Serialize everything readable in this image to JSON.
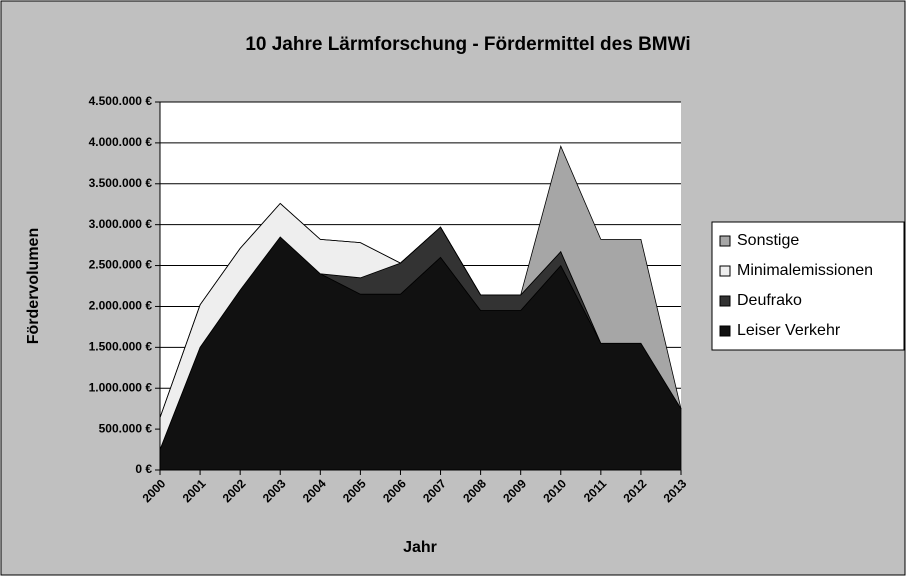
{
  "chart_data": {
    "type": "stacked_area",
    "title": "10 Jahre Lärmforschung - Fördermittel des BMWi",
    "x_label": "Jahr",
    "y_label": "Fördervolumen",
    "categories": [
      "2000",
      "2001",
      "2002",
      "2003",
      "2004",
      "2005",
      "2006",
      "2007",
      "2008",
      "2009",
      "2010",
      "2011",
      "2012",
      "2013"
    ],
    "series": [
      {
        "name": "Leiser Verkehr",
        "color": "#111111",
        "values": [
          250000,
          1500000,
          2200000,
          2850000,
          2400000,
          2150000,
          2150000,
          2600000,
          1950000,
          1950000,
          2500000,
          1550000,
          1550000,
          750000
        ]
      },
      {
        "name": "Deufrako",
        "color": "#333333",
        "values": [
          0,
          0,
          0,
          0,
          0,
          200000,
          380000,
          370000,
          190000,
          190000,
          170000,
          0,
          0,
          0
        ]
      },
      {
        "name": "Minimalemissionen",
        "color": "#eeeeee",
        "values": [
          390000,
          520000,
          510000,
          410000,
          420000,
          430000,
          0,
          0,
          0,
          0,
          0,
          0,
          0,
          0
        ]
      },
      {
        "name": "Sonstige",
        "color": "#a6a6a6",
        "values": [
          0,
          0,
          0,
          0,
          0,
          0,
          0,
          0,
          0,
          0,
          1290000,
          1270000,
          1270000,
          0
        ]
      }
    ],
    "ylim": [
      0,
      4500000
    ],
    "yticks": [
      {
        "value": 0,
        "label": "0 €"
      },
      {
        "value": 500000,
        "label": "500.000 €"
      },
      {
        "value": 1000000,
        "label": "1.000.000 €"
      },
      {
        "value": 1500000,
        "label": "1.500.000 €"
      },
      {
        "value": 2000000,
        "label": "2.000.000 €"
      },
      {
        "value": 2500000,
        "label": "2.500.000 €"
      },
      {
        "value": 3000000,
        "label": "3.000.000 €"
      },
      {
        "value": 3500000,
        "label": "3.500.000 €"
      },
      {
        "value": 4000000,
        "label": "4.000.000 €"
      },
      {
        "value": 4500000,
        "label": "4.500.000 €"
      }
    ],
    "grid": true,
    "legend": "right"
  }
}
